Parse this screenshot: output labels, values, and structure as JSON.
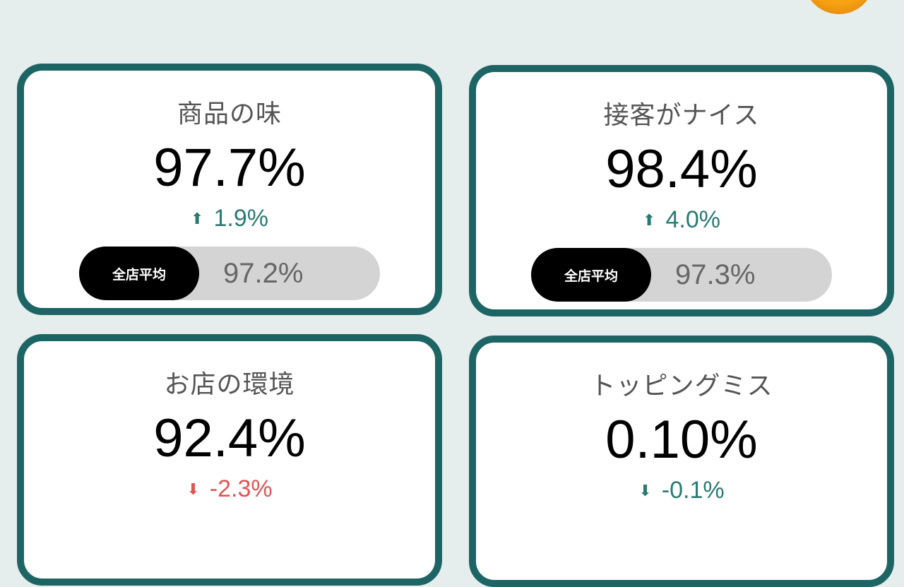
{
  "cards": [
    {
      "title": "商品の味",
      "value": "97.7%",
      "delta": "1.9%",
      "direction": "up",
      "avg_label": "全店平均",
      "avg": "97.2%"
    },
    {
      "title": "接客がナイス",
      "value": "98.4%",
      "delta": "4.0%",
      "direction": "up",
      "avg_label": "全店平均",
      "avg": "97.3%"
    },
    {
      "title": "お店の環境",
      "value": "92.4%",
      "delta": "-2.3%",
      "direction": "down"
    },
    {
      "title": "トッピングミス",
      "value": "0.10%",
      "delta": "-0.1%",
      "direction": "down"
    }
  ],
  "colors": {
    "border": "#1d6565",
    "up": "#2a7a74",
    "down_bad": "#e05555",
    "avatar": "#f6a012"
  },
  "icons": {
    "up": "arrow-up-icon",
    "down": "arrow-down-icon"
  }
}
